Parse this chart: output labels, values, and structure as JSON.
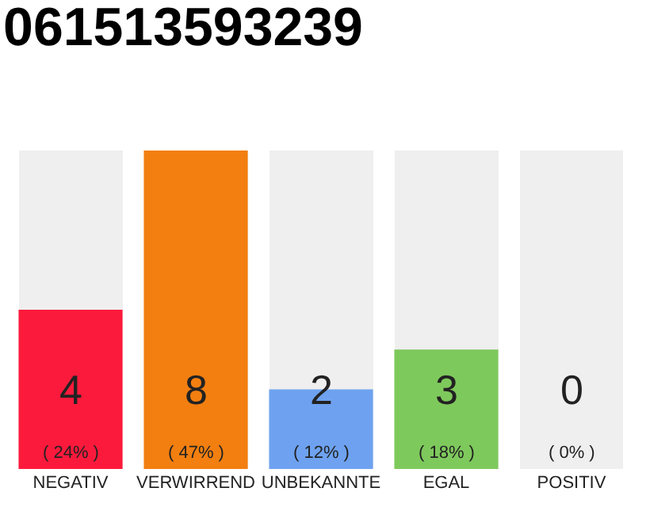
{
  "chart_data": {
    "type": "bar",
    "title": "061513593239",
    "categories": [
      "NEGATIV",
      "VERWIRREND",
      "UNBEKANNTE",
      "EGAL",
      "POSITIV"
    ],
    "values": [
      4,
      8,
      2,
      3,
      0
    ],
    "colors": [
      "#fc1a3c",
      "#f27f10",
      "#6ea2f0",
      "#7ec95c",
      "#cccccc"
    ],
    "value_labels": [
      "4\n( 24% )",
      "8\n( 47% )",
      "2\n( 12% )",
      "3\n( 18% )",
      "0\n( 0% )"
    ],
    "ylim": [
      0,
      8
    ],
    "tick_labels": "x",
    "grid": false
  }
}
